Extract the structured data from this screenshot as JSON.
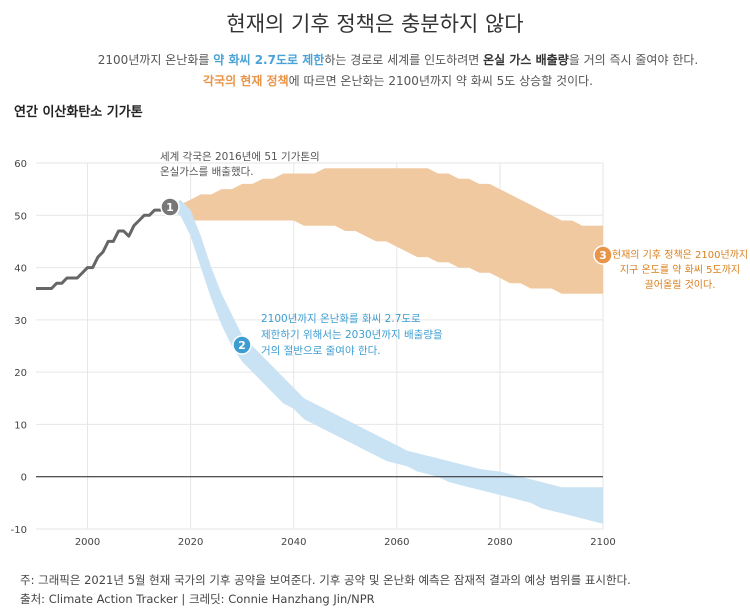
{
  "header": {
    "title": "현재의 기후 정책은 충분하지 않다",
    "subtitle_line1": [
      {
        "text": "2100년까지 온난화를 ",
        "style": "plain"
      },
      {
        "text": "약 화씨 2.7도로 제한",
        "style": "blue"
      },
      {
        "text": "하는 경로로 세계를 인도하려면 ",
        "style": "plain"
      },
      {
        "text": "온실 가스 배출량",
        "style": "bold"
      },
      {
        "text": "을 거의 즉시 줄여야 한다.",
        "style": "plain"
      }
    ],
    "subtitle_line2": [
      {
        "text": "각국의 현재 정책",
        "style": "orange"
      },
      {
        "text": "에 따르면 온난화는 2100년까지 약 화씨 5도 상승할 것이다.",
        "style": "plain"
      }
    ]
  },
  "chart_title": "연간 이산화탄소 기가톤",
  "footnote": {
    "line1": "주: 그래픽은 2021년 5월 현재 국가의 기후 공약을 보여준다. 기후 공약 및 온난화 예측은 잠재적 결과의 예상 범위를 표시한다.",
    "line2": "출처: Climate Action Tracker  |  크레딧: Connie Hanzhang Jin/NPR"
  },
  "colors": {
    "historical": "#666666",
    "current_policy": "#f0c9a0",
    "target": "#c9e3f4",
    "orange_text": "#d9801e",
    "blue_text": "#3d9dd1",
    "grid": "#e6e6e6",
    "zero_line": "#222222"
  },
  "annotations": [
    {
      "number": "1",
      "color": "#777777",
      "text_lines": [
        "세계 각국은 2016년에 51 기가톤의",
        "온실가스를 배출했다."
      ],
      "text_color": "#555555"
    },
    {
      "number": "2",
      "color": "#3d9dd1",
      "text_lines": [
        "2100년까지 온난화를 화씨 2.7도로",
        "제한하기 위해서는 2030년까지 배출량을",
        "거의 절반으로 줄여야 한다."
      ],
      "text_color": "#3d9dd1"
    },
    {
      "number": "3",
      "color": "#e8954a",
      "text_lines": [
        "현재의 기후 정책은 2100년까지",
        "지구 온도를 약 화씨 5도까지",
        "끌어올릴 것이다."
      ],
      "text_color": "#d9801e"
    }
  ],
  "chart_data": {
    "type": "area",
    "xlim": [
      1990,
      2100
    ],
    "ylim": [
      -10,
      60
    ],
    "x_ticks": [
      2000,
      2020,
      2040,
      2060,
      2080,
      2100
    ],
    "y_ticks": [
      60,
      50,
      40,
      30,
      20,
      10,
      0,
      -10
    ],
    "grid": true,
    "series": [
      {
        "key": "historical",
        "kind": "line",
        "x": [
          1990,
          1991,
          1992,
          1993,
          1994,
          1995,
          1996,
          1997,
          1998,
          1999,
          2000,
          2001,
          2002,
          2003,
          2004,
          2005,
          2006,
          2007,
          2008,
          2009,
          2010,
          2011,
          2012,
          2013,
          2014,
          2015,
          2016
        ],
        "y": [
          36,
          36,
          36,
          36,
          37,
          37,
          38,
          38,
          38,
          39,
          40,
          40,
          42,
          43,
          45,
          45,
          47,
          47,
          46,
          48,
          49,
          50,
          50,
          51,
          51,
          51,
          51
        ]
      },
      {
        "key": "current_policy",
        "kind": "band",
        "x": [
          2016,
          2018,
          2020,
          2022,
          2024,
          2026,
          2028,
          2030,
          2032,
          2034,
          2036,
          2038,
          2040,
          2042,
          2044,
          2046,
          2048,
          2050,
          2052,
          2054,
          2056,
          2058,
          2060,
          2062,
          2064,
          2066,
          2068,
          2070,
          2072,
          2074,
          2076,
          2078,
          2080,
          2082,
          2084,
          2086,
          2088,
          2090,
          2092,
          2094,
          2096,
          2098,
          2100
        ],
        "upper": [
          51,
          52,
          53,
          54,
          54,
          55,
          55,
          56,
          56,
          57,
          57,
          58,
          58,
          58,
          58,
          59,
          59,
          59,
          59,
          59,
          59,
          59,
          59,
          59,
          59,
          59,
          58,
          58,
          57,
          57,
          56,
          56,
          55,
          54,
          53,
          52,
          51,
          50,
          49,
          49,
          48,
          48,
          48
        ],
        "lower": [
          51,
          50,
          49,
          49,
          49,
          49,
          49,
          49,
          49,
          49,
          49,
          49,
          49,
          48,
          48,
          48,
          48,
          47,
          47,
          46,
          45,
          45,
          44,
          43,
          42,
          42,
          41,
          41,
          40,
          40,
          39,
          39,
          38,
          37,
          37,
          36,
          36,
          36,
          35,
          35,
          35,
          35,
          35
        ]
      },
      {
        "key": "target",
        "kind": "band",
        "x": [
          2016,
          2018,
          2020,
          2022,
          2024,
          2026,
          2028,
          2030,
          2032,
          2034,
          2036,
          2038,
          2040,
          2042,
          2044,
          2046,
          2048,
          2050,
          2052,
          2054,
          2056,
          2058,
          2060,
          2062,
          2064,
          2066,
          2068,
          2070,
          2072,
          2074,
          2076,
          2078,
          2080,
          2082,
          2084,
          2086,
          2088,
          2090,
          2092,
          2094,
          2096,
          2098,
          2100
        ],
        "upper": [
          51,
          53,
          51,
          46,
          40,
          35,
          31,
          27,
          25,
          23,
          21,
          19,
          17,
          15,
          14,
          13,
          12,
          11,
          10,
          9,
          8,
          7,
          6,
          5,
          4.5,
          4,
          3.5,
          3,
          2.5,
          2,
          1.5,
          1.2,
          1,
          0.5,
          0,
          -0.5,
          -1,
          -1.5,
          -2,
          -2,
          -2,
          -2,
          -2
        ],
        "lower": [
          51,
          50,
          46,
          40,
          34,
          29,
          25,
          22,
          20,
          18,
          16,
          14,
          13,
          11,
          10,
          9,
          8,
          7,
          6,
          5,
          4,
          3,
          2.5,
          2,
          1,
          0.5,
          0,
          -1,
          -1.5,
          -2,
          -2.5,
          -3,
          -3.5,
          -4,
          -4.5,
          -5,
          -6,
          -6.5,
          -7,
          -7.5,
          -8,
          -8.5,
          -9
        ]
      }
    ]
  }
}
